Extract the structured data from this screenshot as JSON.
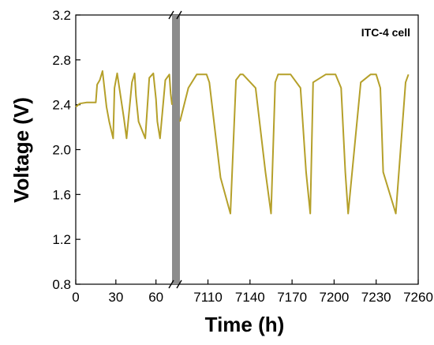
{
  "chart_data": {
    "type": "line",
    "xlabel": "Time (h)",
    "ylabel": "Voltage (V)",
    "annotation": "ITC-4 cell",
    "ylim": [
      0.8,
      3.2
    ],
    "yticks": [
      "0.8",
      "1.2",
      "1.6",
      "2.0",
      "2.4",
      "2.8",
      "3.2"
    ],
    "axis_break": true,
    "segments": [
      {
        "xlim": [
          0,
          72
        ],
        "xticks": [
          "0",
          "30",
          "60"
        ],
        "x": [
          0,
          3,
          8,
          15,
          16,
          18,
          20,
          23,
          25,
          28,
          29,
          31,
          36,
          38,
          42,
          44,
          45,
          47,
          52,
          55,
          58,
          60,
          61,
          63,
          67,
          70,
          71,
          72
        ],
        "y": [
          2.38,
          2.41,
          2.42,
          2.42,
          2.58,
          2.62,
          2.7,
          2.38,
          2.25,
          2.1,
          2.55,
          2.68,
          2.28,
          2.1,
          2.6,
          2.68,
          2.48,
          2.25,
          2.1,
          2.64,
          2.68,
          2.45,
          2.25,
          2.1,
          2.62,
          2.67,
          2.5,
          2.4
        ]
      },
      {
        "xlim": [
          7090,
          7260
        ],
        "xticks": [
          "7110",
          "7140",
          "7170",
          "7200",
          "7230",
          "7260"
        ],
        "x": [
          7090,
          7096,
          7102,
          7106,
          7109,
          7111,
          7119,
          7126,
          7130,
          7133,
          7135,
          7144,
          7151,
          7155,
          7158,
          7160,
          7169,
          7176,
          7180,
          7183,
          7185,
          7194,
          7201,
          7205,
          7208,
          7210,
          7219,
          7226,
          7230,
          7233,
          7235,
          7244,
          7251,
          7253
        ],
        "y": [
          2.25,
          2.55,
          2.67,
          2.67,
          2.67,
          2.6,
          1.75,
          1.43,
          2.62,
          2.67,
          2.67,
          2.55,
          1.8,
          1.43,
          2.6,
          2.67,
          2.67,
          2.55,
          1.8,
          1.43,
          2.6,
          2.67,
          2.67,
          2.55,
          1.8,
          1.43,
          2.6,
          2.67,
          2.67,
          2.55,
          1.8,
          1.43,
          2.6,
          2.67
        ]
      }
    ],
    "line_color": "#b5a02a",
    "break_color": "#8c8c8c"
  }
}
